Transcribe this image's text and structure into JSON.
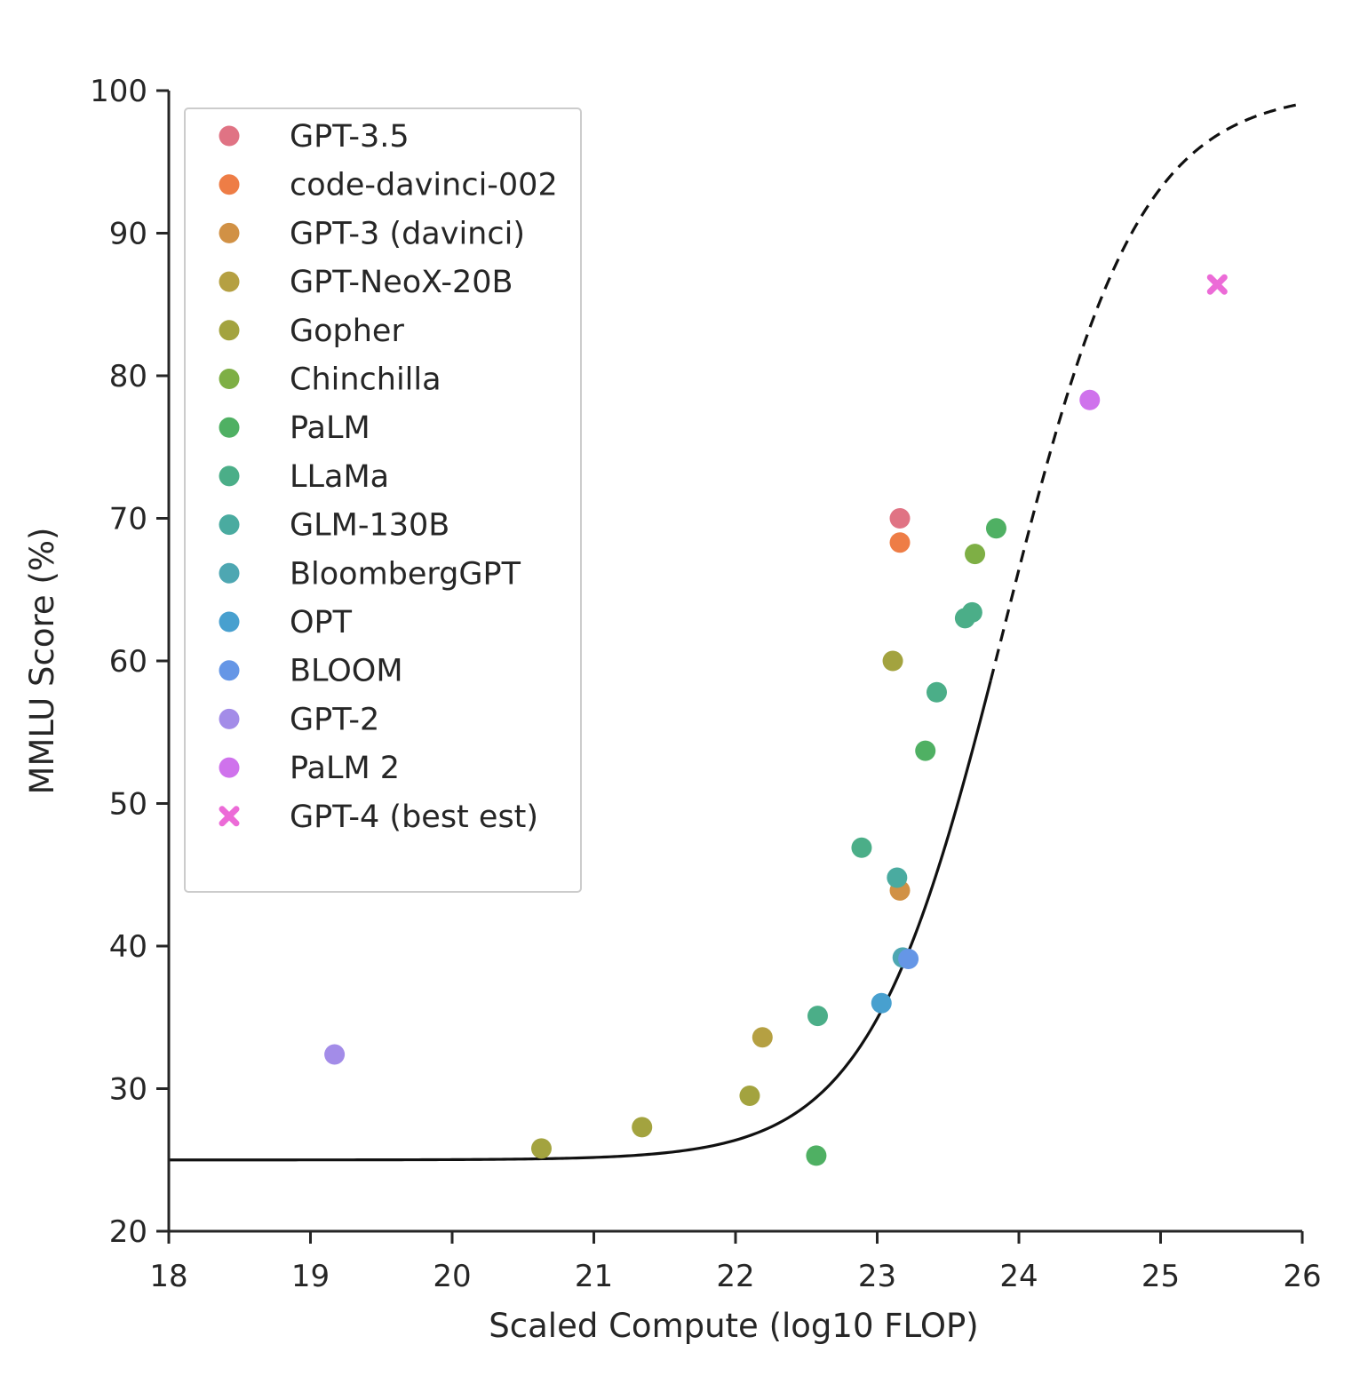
{
  "chart_data": {
    "type": "scatter",
    "title": "",
    "xlabel": "Scaled Compute (log10 FLOP)",
    "ylabel": "MMLU Score (%)",
    "xlim": [
      18,
      26
    ],
    "ylim": [
      20,
      100
    ],
    "xticks": [
      18,
      19,
      20,
      21,
      22,
      23,
      24,
      25,
      26
    ],
    "yticks": [
      20,
      30,
      40,
      50,
      60,
      70,
      80,
      90,
      100
    ],
    "grid": false,
    "legend_position": "top-left",
    "series": [
      {
        "name": "GPT-3.5",
        "color": "#e07384",
        "marker": "circle",
        "points": [
          [
            23.16,
            70.0
          ]
        ]
      },
      {
        "name": "code-davinci-002",
        "color": "#ee7d46",
        "marker": "circle",
        "points": [
          [
            23.16,
            68.3
          ]
        ]
      },
      {
        "name": "GPT-3 (davinci)",
        "color": "#d19145",
        "marker": "circle",
        "points": [
          [
            23.16,
            43.9
          ]
        ]
      },
      {
        "name": "GPT-NeoX-20B",
        "color": "#b5a042",
        "marker": "circle",
        "points": [
          [
            22.19,
            33.6
          ]
        ]
      },
      {
        "name": "Gopher",
        "color": "#a3a33f",
        "marker": "circle",
        "points": [
          [
            20.63,
            25.8
          ],
          [
            21.34,
            27.3
          ],
          [
            22.1,
            29.5
          ],
          [
            23.11,
            60.0
          ]
        ]
      },
      {
        "name": "Chinchilla",
        "color": "#7eaf45",
        "marker": "circle",
        "points": [
          [
            23.69,
            67.5
          ]
        ]
      },
      {
        "name": "PaLM",
        "color": "#4fb063",
        "marker": "circle",
        "points": [
          [
            22.57,
            25.3
          ],
          [
            23.34,
            53.7
          ],
          [
            23.84,
            69.3
          ]
        ]
      },
      {
        "name": "LLaMa",
        "color": "#4bae88",
        "marker": "circle",
        "points": [
          [
            22.58,
            35.1
          ],
          [
            22.89,
            46.9
          ],
          [
            23.42,
            57.8
          ],
          [
            23.62,
            63.0
          ],
          [
            23.67,
            63.4
          ]
        ]
      },
      {
        "name": "GLM-130B",
        "color": "#4aaba0",
        "marker": "circle",
        "points": [
          [
            23.14,
            44.8
          ]
        ]
      },
      {
        "name": "BloombergGPT",
        "color": "#4ea7b2",
        "marker": "circle",
        "points": [
          [
            23.18,
            39.2
          ]
        ]
      },
      {
        "name": "OPT",
        "color": "#48a0cf",
        "marker": "circle",
        "points": [
          [
            23.03,
            36.0
          ]
        ]
      },
      {
        "name": "BLOOM",
        "color": "#6596e6",
        "marker": "circle",
        "points": [
          [
            23.22,
            39.1
          ]
        ]
      },
      {
        "name": "GPT-2",
        "color": "#a38ce8",
        "marker": "circle",
        "points": [
          [
            19.17,
            32.4
          ]
        ]
      },
      {
        "name": "PaLM 2",
        "color": "#cf72ec",
        "marker": "circle",
        "points": [
          [
            24.5,
            78.3
          ]
        ]
      },
      {
        "name": "GPT-4 (best est)",
        "color": "#ec6bd7",
        "marker": "x",
        "points": [
          [
            25.4,
            86.4
          ]
        ]
      }
    ],
    "fit_curve": {
      "name": "sigmoid fit",
      "color": "#111111",
      "floor": 25,
      "ceiling": 100,
      "midpoint": 23.9,
      "slope": 2.09,
      "solid_range": [
        18,
        23.8
      ],
      "dashed_range": [
        23.8,
        26
      ]
    }
  }
}
